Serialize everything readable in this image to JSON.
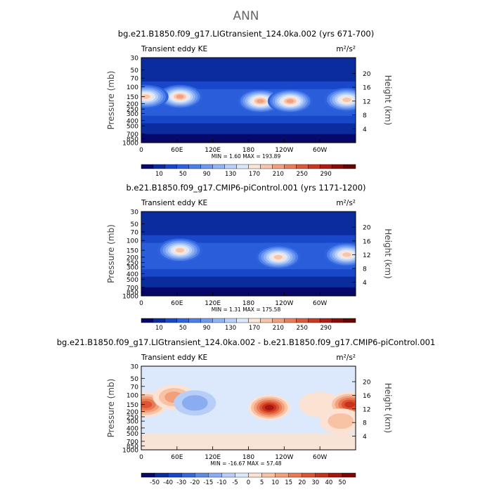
{
  "figure_title": "ANN",
  "colormaps": {
    "abs": [
      "#08086b",
      "#0b2c9e",
      "#1847c9",
      "#2f63de",
      "#4d7fea",
      "#6f9af1",
      "#93b5f6",
      "#b8d0fa",
      "#dbe8fb",
      "#fbe4d8",
      "#f8c4ac",
      "#f2a080",
      "#e87d5d",
      "#dc5a3c",
      "#c93822",
      "#ad1d12",
      "#8a0c08",
      "#650404"
    ],
    "diff": [
      "#08086b",
      "#0b2c9e",
      "#1847c9",
      "#3566dc",
      "#5f8be7",
      "#8aadf1",
      "#b7cff8",
      "#dce8fb",
      "#fbe2d3",
      "#f8c2a5",
      "#f29f7b",
      "#e97a55",
      "#dc5433",
      "#c7321b",
      "#a8160d",
      "#7f0606"
    ]
  },
  "chart_data": [
    {
      "type": "heatmap",
      "title": "bg.e21.B1850.f09_g17.LIGtransient_124.0ka.002 (yrs 671-700)",
      "left_label": "Transient eddy KE",
      "units": "m²/s²",
      "ylabel": "Pressure (mb)",
      "ylabel_right": "Height (km)",
      "y_ticks": [
        "30",
        "50",
        "70",
        "100",
        "150",
        "200",
        "250",
        "300",
        "400",
        "500",
        "700",
        "850",
        "1000"
      ],
      "y_ticks_right": [
        "20",
        "16",
        "12",
        "8",
        "4"
      ],
      "x_ticks": [
        "0",
        "60E",
        "120E",
        "180",
        "120W",
        "60W"
      ],
      "minmax": "MIN = 1.60 MAX = 193.89",
      "colorbar_labels": [
        "10",
        "50",
        "90",
        "130",
        "170",
        "210",
        "250",
        "290"
      ],
      "field": "abs",
      "features": [
        {
          "lon": 65,
          "p": 150,
          "value": 175
        },
        {
          "lon": 8,
          "p": 150,
          "value": 150
        },
        {
          "lon": 200,
          "p": 180,
          "value": 180
        },
        {
          "lon": 250,
          "p": 180,
          "value": 185
        },
        {
          "lon": 345,
          "p": 170,
          "value": 165
        }
      ]
    },
    {
      "type": "heatmap",
      "title": "b.e21.B1850.f09_g17.CMIP6-piControl.001 (yrs 1171-1200)",
      "left_label": "Transient eddy KE",
      "units": "m²/s²",
      "ylabel": "Pressure (mb)",
      "ylabel_right": "Height (km)",
      "y_ticks": [
        "30",
        "50",
        "70",
        "100",
        "150",
        "200",
        "250",
        "300",
        "400",
        "500",
        "700",
        "850",
        "1000"
      ],
      "y_ticks_right": [
        "20",
        "16",
        "12",
        "8",
        "4"
      ],
      "x_ticks": [
        "0",
        "60E",
        "120E",
        "180",
        "120W",
        "60W"
      ],
      "minmax": "MIN = 1.31 MAX = 175.58",
      "colorbar_labels": [
        "10",
        "50",
        "90",
        "130",
        "170",
        "210",
        "250",
        "290"
      ],
      "field": "abs",
      "features": [
        {
          "lon": 65,
          "p": 150,
          "value": 165
        },
        {
          "lon": 230,
          "p": 200,
          "value": 160
        },
        {
          "lon": 345,
          "p": 180,
          "value": 150
        }
      ]
    },
    {
      "type": "heatmap",
      "title": "bg.e21.B1850.f09_g17.LIGtransient_124.0ka.002 - b.e21.B1850.f09_g17.CMIP6-piControl.001",
      "left_label": "Transient eddy KE",
      "units": "m²/s²",
      "ylabel": "Pressure (mb)",
      "ylabel_right": "Height (km)",
      "y_ticks": [
        "30",
        "50",
        "70",
        "100",
        "150",
        "200",
        "250",
        "300",
        "400",
        "500",
        "700",
        "850",
        "1000"
      ],
      "y_ticks_right": [
        "20",
        "16",
        "12",
        "8",
        "4"
      ],
      "x_ticks": [
        "0",
        "60E",
        "120E",
        "180",
        "120W",
        "60W"
      ],
      "minmax": "MIN = -16.67 MAX = 57.48",
      "colorbar_labels": [
        "-50",
        "-40",
        "-30",
        "-20",
        "-15",
        "-10",
        "-5",
        "0",
        "5",
        "10",
        "15",
        "20",
        "30",
        "40",
        "50"
      ],
      "field": "diff",
      "features": [
        {
          "lon": 8,
          "p": 150,
          "value": 40
        },
        {
          "lon": 55,
          "p": 110,
          "value": 25
        },
        {
          "lon": 90,
          "p": 140,
          "value": -8
        },
        {
          "lon": 215,
          "p": 170,
          "value": 57
        },
        {
          "lon": 300,
          "p": 150,
          "value": 10
        },
        {
          "lon": 350,
          "p": 150,
          "value": 50
        },
        {
          "lon": 335,
          "p": 300,
          "value": 15
        }
      ]
    }
  ]
}
